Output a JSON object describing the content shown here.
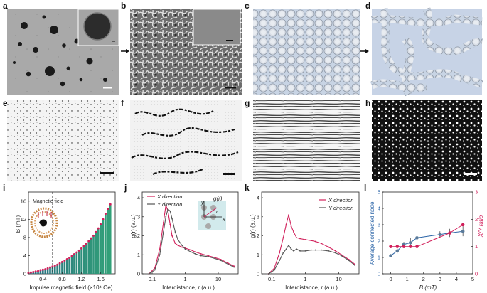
{
  "panel_labels": {
    "a": "a",
    "b": "b",
    "c": "c",
    "d": "d",
    "e": "e",
    "f": "f",
    "g": "g",
    "h": "h",
    "i": "i",
    "j": "j",
    "k": "k",
    "l": "l"
  },
  "colors": {
    "pink": "#d1205b",
    "gray": "#555555",
    "teal": "#1a9e8f",
    "blue": "#2d66a8",
    "bluegray": "#5a7a99"
  },
  "panel_i": {
    "ylabel": "B (mT)",
    "xlabel": "Impulse magnetic field (×10⁴ Oe)",
    "inset_label": "Magnetic field",
    "yticks": [
      "0",
      "4",
      "8",
      "12",
      "16"
    ],
    "xticks": [
      "0.4",
      "0.8",
      "1.2",
      "1.6"
    ]
  },
  "panel_j": {
    "ylabel": "g(r) (a.u.)",
    "xlabel": "Interdistance, r (a.u.)",
    "legend": [
      "X direction",
      "Y direction"
    ],
    "inset_label": "g(r)",
    "inset_axes": [
      "x",
      "y",
      "r"
    ],
    "yticks": [
      "0",
      "1",
      "2",
      "3",
      "4"
    ],
    "xticks": [
      "0.1",
      "1",
      "10"
    ]
  },
  "panel_k": {
    "ylabel": "g(r) (a.u.)",
    "xlabel": "Interdistance, r (a.u.)",
    "legend": [
      "X direction",
      "Y direction"
    ],
    "yticks": [
      "0",
      "1",
      "2",
      "3",
      "4"
    ],
    "xticks": [
      "0.1",
      "1",
      "10"
    ]
  },
  "panel_l": {
    "ylabel_left": "Average connected node",
    "ylabel_right": "X/Y ratio",
    "xlabel": "B (mT)",
    "yticks_left": [
      "0",
      "1",
      "2",
      "3",
      "4",
      "5"
    ],
    "yticks_right": [
      "0",
      "1",
      "2",
      "3"
    ],
    "xticks": [
      "0",
      "1",
      "2",
      "3",
      "4",
      "5"
    ]
  },
  "chart_data": [
    {
      "type": "bar",
      "panel": "i",
      "xlabel": "Impulse magnetic field (×10⁴ Oe)",
      "ylabel": "B (mT)",
      "ylim": [
        0,
        18
      ],
      "xlim": [
        0.1,
        1.9
      ],
      "x": [
        0.1,
        0.15,
        0.2,
        0.25,
        0.3,
        0.35,
        0.4,
        0.45,
        0.5,
        0.55,
        0.6,
        0.65,
        0.7,
        0.75,
        0.8,
        0.85,
        0.9,
        0.95,
        1.0,
        1.05,
        1.1,
        1.15,
        1.2,
        1.25,
        1.3,
        1.35,
        1.4,
        1.45,
        1.5,
        1.55,
        1.6,
        1.65,
        1.7,
        1.75,
        1.8
      ],
      "values": [
        0.2,
        0.3,
        0.4,
        0.5,
        0.6,
        0.8,
        0.9,
        1.0,
        1.2,
        1.4,
        1.6,
        1.8,
        2.0,
        2.3,
        2.6,
        2.9,
        3.2,
        3.5,
        3.9,
        4.3,
        4.7,
        5.1,
        5.6,
        6.1,
        6.6,
        7.2,
        7.8,
        8.4,
        9.2,
        10.0,
        10.9,
        12.0,
        13.2,
        14.3,
        15.3
      ]
    },
    {
      "type": "line",
      "panel": "j",
      "xlabel": "Interdistance, r (a.u.)",
      "ylabel": "g(r) (a.u.)",
      "xscale": "log",
      "xlim": [
        0.05,
        40
      ],
      "ylim": [
        0,
        4.3
      ],
      "series": [
        {
          "name": "X direction",
          "x": [
            0.08,
            0.12,
            0.17,
            0.22,
            0.26,
            0.3,
            0.35,
            0.4,
            0.5,
            0.6,
            0.8,
            1.0,
            1.5,
            2,
            3,
            5,
            8,
            12,
            20,
            30
          ],
          "values": [
            0,
            0.3,
            1.3,
            2.7,
            3.6,
            3.3,
            2.6,
            2.0,
            1.6,
            1.5,
            1.4,
            1.35,
            1.25,
            1.15,
            1.05,
            0.95,
            0.85,
            0.75,
            0.55,
            0.4
          ]
        },
        {
          "name": "Y direction",
          "x": [
            0.08,
            0.12,
            0.17,
            0.22,
            0.26,
            0.3,
            0.35,
            0.4,
            0.5,
            0.6,
            0.8,
            1.0,
            1.5,
            2,
            3,
            5,
            8,
            12,
            20,
            30
          ],
          "values": [
            0,
            0.2,
            1.0,
            2.2,
            3.0,
            3.4,
            3.3,
            2.9,
            2.2,
            1.8,
            1.5,
            1.3,
            1.15,
            1.05,
            0.95,
            0.9,
            0.8,
            0.7,
            0.5,
            0.35
          ]
        }
      ]
    },
    {
      "type": "line",
      "panel": "k",
      "xlabel": "Interdistance, r (a.u.)",
      "ylabel": "g(r) (a.u.)",
      "xscale": "log",
      "xlim": [
        0.05,
        40
      ],
      "ylim": [
        0,
        4.3
      ],
      "series": [
        {
          "name": "X direction",
          "x": [
            0.08,
            0.12,
            0.17,
            0.22,
            0.27,
            0.32,
            0.38,
            0.45,
            0.55,
            0.7,
            1.0,
            1.5,
            2,
            3,
            5,
            8,
            12,
            20,
            30
          ],
          "values": [
            0,
            0.3,
            1.1,
            1.9,
            2.6,
            3.1,
            2.5,
            2.2,
            1.9,
            1.85,
            1.8,
            1.75,
            1.7,
            1.6,
            1.4,
            1.2,
            1.0,
            0.75,
            0.5
          ]
        },
        {
          "name": "Y direction",
          "x": [
            0.08,
            0.12,
            0.17,
            0.22,
            0.27,
            0.32,
            0.38,
            0.45,
            0.55,
            0.7,
            1.0,
            1.5,
            2,
            3,
            5,
            8,
            12,
            20,
            30
          ],
          "values": [
            0,
            0.2,
            0.7,
            1.1,
            1.3,
            1.5,
            1.3,
            1.2,
            1.3,
            1.2,
            1.2,
            1.25,
            1.25,
            1.25,
            1.2,
            1.1,
            0.95,
            0.7,
            0.45
          ]
        }
      ]
    },
    {
      "type": "scatter",
      "panel": "l",
      "xlabel": "B (mT)",
      "ylabel": "Average connected node",
      "y2label": "X/Y ratio",
      "xlim": [
        -0.5,
        5
      ],
      "ylim": [
        0,
        5
      ],
      "y2lim": [
        0,
        3
      ],
      "series": [
        {
          "name": "Average connected node",
          "x": [
            0,
            0.4,
            0.8,
            1.2,
            1.6,
            3.0,
            3.6,
            4.4
          ],
          "values": [
            1.1,
            1.4,
            1.8,
            1.9,
            2.2,
            2.4,
            2.5,
            2.6
          ],
          "yerr": [
            0.1,
            0.15,
            0.15,
            0.3,
            0.2,
            0.2,
            0.25,
            0.3
          ],
          "axis": "left"
        },
        {
          "name": "X/Y ratio",
          "x": [
            0,
            0.4,
            0.8,
            1.2,
            1.6,
            3.6,
            4.4
          ],
          "values": [
            1.0,
            1.0,
            1.0,
            1.0,
            1.0,
            1.5,
            1.8
          ],
          "axis": "right"
        }
      ]
    }
  ]
}
